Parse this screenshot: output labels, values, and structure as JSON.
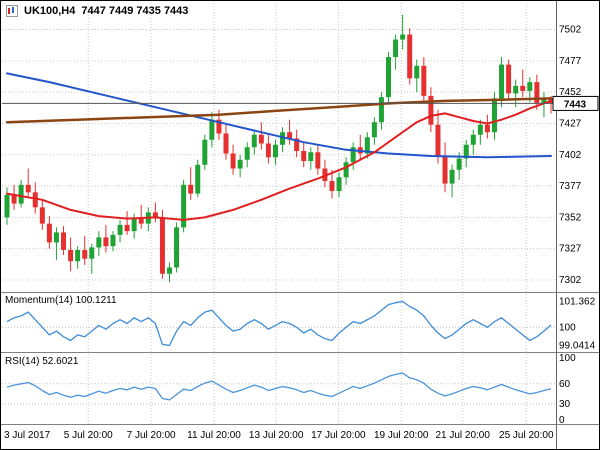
{
  "chart_data": {
    "type": "candlestick",
    "title": "UK100,H4 7447 7449 7435 7443",
    "symbol_tf": "UK100,H4",
    "ohlc_display": "7447 7449 7435 7443",
    "colors": {
      "up": "#1FA334",
      "down": "#E53030",
      "ma_slow": "#2255CC",
      "ma_medium": "#8B4513",
      "ma_fast": "#E02020",
      "momentum": "#3C8CD8",
      "rsi": "#4C94DC",
      "grid": "#C8C8C8",
      "grid_level": "#BFBFBF",
      "price_line": "#555555"
    },
    "main": {
      "ylim": [
        7294,
        7520
      ],
      "yticks": [
        7502,
        7477,
        7452,
        7427,
        7402,
        7377,
        7352,
        7327,
        7302
      ],
      "current_price": 7443,
      "candles": [
        [
          7352,
          7376,
          7346,
          7370
        ],
        [
          7370,
          7378,
          7358,
          7363
        ],
        [
          7363,
          7382,
          7360,
          7378
        ],
        [
          7378,
          7391,
          7368,
          7372
        ],
        [
          7372,
          7380,
          7355,
          7360
        ],
        [
          7360,
          7366,
          7342,
          7347
        ],
        [
          7347,
          7353,
          7327,
          7332
        ],
        [
          7332,
          7344,
          7318,
          7340
        ],
        [
          7340,
          7345,
          7322,
          7326
        ],
        [
          7326,
          7336,
          7309,
          7317
        ],
        [
          7317,
          7329,
          7311,
          7326
        ],
        [
          7326,
          7337,
          7314,
          7319
        ],
        [
          7319,
          7331,
          7307,
          7328
        ],
        [
          7328,
          7341,
          7321,
          7336
        ],
        [
          7336,
          7346,
          7324,
          7329
        ],
        [
          7329,
          7341,
          7325,
          7338
        ],
        [
          7338,
          7350,
          7332,
          7346
        ],
        [
          7346,
          7357,
          7338,
          7341
        ],
        [
          7341,
          7355,
          7335,
          7351
        ],
        [
          7351,
          7362,
          7343,
          7347
        ],
        [
          7347,
          7360,
          7341,
          7356
        ],
        [
          7356,
          7364,
          7348,
          7352
        ],
        [
          7352,
          7358,
          7303,
          7307
        ],
        [
          7307,
          7316,
          7300,
          7312
        ],
        [
          7312,
          7348,
          7308,
          7344
        ],
        [
          7344,
          7382,
          7340,
          7378
        ],
        [
          7378,
          7392,
          7366,
          7371
        ],
        [
          7371,
          7398,
          7368,
          7394
        ],
        [
          7394,
          7418,
          7390,
          7414
        ],
        [
          7414,
          7436,
          7408,
          7430
        ],
        [
          7430,
          7438,
          7414,
          7419
        ],
        [
          7419,
          7426,
          7398,
          7403
        ],
        [
          7403,
          7410,
          7386,
          7391
        ],
        [
          7391,
          7402,
          7384,
          7398
        ],
        [
          7398,
          7412,
          7392,
          7408
        ],
        [
          7408,
          7422,
          7402,
          7418
        ],
        [
          7418,
          7428,
          7406,
          7411
        ],
        [
          7411,
          7419,
          7395,
          7400
        ],
        [
          7400,
          7414,
          7394,
          7410
        ],
        [
          7410,
          7424,
          7404,
          7420
        ],
        [
          7420,
          7430,
          7410,
          7415
        ],
        [
          7415,
          7422,
          7400,
          7405
        ],
        [
          7405,
          7412,
          7392,
          7397
        ],
        [
          7397,
          7408,
          7390,
          7404
        ],
        [
          7404,
          7410,
          7386,
          7391
        ],
        [
          7391,
          7398,
          7376,
          7381
        ],
        [
          7381,
          7390,
          7367,
          7373
        ],
        [
          7373,
          7388,
          7368,
          7384
        ],
        [
          7384,
          7400,
          7378,
          7396
        ],
        [
          7396,
          7412,
          7390,
          7408
        ],
        [
          7408,
          7418,
          7398,
          7403
        ],
        [
          7403,
          7420,
          7399,
          7416
        ],
        [
          7416,
          7432,
          7410,
          7428
        ],
        [
          7428,
          7452,
          7422,
          7448
        ],
        [
          7448,
          7484,
          7442,
          7480
        ],
        [
          7480,
          7498,
          7470,
          7494
        ],
        [
          7494,
          7514,
          7486,
          7498
        ],
        [
          7498,
          7503,
          7458,
          7463
        ],
        [
          7463,
          7478,
          7452,
          7473
        ],
        [
          7473,
          7480,
          7444,
          7449
        ],
        [
          7449,
          7456,
          7420,
          7426
        ],
        [
          7426,
          7438,
          7395,
          7401
        ],
        [
          7401,
          7412,
          7372,
          7379
        ],
        [
          7379,
          7394,
          7368,
          7390
        ],
        [
          7390,
          7404,
          7382,
          7399
        ],
        [
          7399,
          7414,
          7392,
          7410
        ],
        [
          7410,
          7422,
          7402,
          7418
        ],
        [
          7418,
          7430,
          7410,
          7426
        ],
        [
          7426,
          7434,
          7415,
          7420
        ],
        [
          7420,
          7452,
          7414,
          7447
        ],
        [
          7447,
          7480,
          7440,
          7474
        ],
        [
          7474,
          7478,
          7446,
          7451
        ],
        [
          7451,
          7462,
          7440,
          7457
        ],
        [
          7457,
          7470,
          7448,
          7453
        ],
        [
          7453,
          7464,
          7444,
          7460
        ],
        [
          7460,
          7466,
          7438,
          7443
        ],
        [
          7443,
          7452,
          7432,
          7447
        ],
        [
          7447,
          7449,
          7435,
          7443
        ]
      ],
      "ma_slow": {
        "points": [
          [
            0,
            7467
          ],
          [
            6,
            7460
          ],
          [
            12,
            7452
          ],
          [
            18,
            7444
          ],
          [
            24,
            7436
          ],
          [
            30,
            7428
          ],
          [
            36,
            7420
          ],
          [
            42,
            7412
          ],
          [
            48,
            7406
          ],
          [
            54,
            7403
          ],
          [
            60,
            7401
          ],
          [
            68,
            7400
          ],
          [
            77,
            7401
          ]
        ]
      },
      "ma_medium": {
        "points": [
          [
            0,
            7428
          ],
          [
            10,
            7430
          ],
          [
            20,
            7432
          ],
          [
            30,
            7434
          ],
          [
            38,
            7437
          ],
          [
            46,
            7440
          ],
          [
            54,
            7443
          ],
          [
            62,
            7445
          ],
          [
            70,
            7446
          ],
          [
            77,
            7447
          ]
        ]
      },
      "ma_fast": {
        "points": [
          [
            0,
            7371
          ],
          [
            5,
            7366
          ],
          [
            9,
            7358
          ],
          [
            13,
            7353
          ],
          [
            17,
            7351
          ],
          [
            21,
            7352
          ],
          [
            25,
            7350
          ],
          [
            28,
            7352
          ],
          [
            32,
            7358
          ],
          [
            36,
            7366
          ],
          [
            40,
            7375
          ],
          [
            44,
            7383
          ],
          [
            48,
            7392
          ],
          [
            52,
            7404
          ],
          [
            54,
            7412
          ],
          [
            56,
            7420
          ],
          [
            58,
            7428
          ],
          [
            60,
            7433
          ],
          [
            62,
            7435
          ],
          [
            64,
            7432
          ],
          [
            66,
            7429
          ],
          [
            68,
            7427
          ],
          [
            70,
            7430
          ],
          [
            72,
            7434
          ],
          [
            74,
            7439
          ],
          [
            76,
            7443
          ],
          [
            77,
            7445
          ]
        ]
      }
    },
    "momentum": {
      "label": "Momentum(14) 100.1211",
      "value": 100.1211,
      "ylim": [
        98.8,
        101.6
      ],
      "yticks": [
        101.362,
        100,
        99.0414
      ],
      "levels": [
        100
      ],
      "values": [
        100.3,
        100.5,
        100.6,
        100.8,
        100.4,
        100.0,
        99.6,
        99.8,
        99.5,
        99.3,
        99.6,
        99.5,
        99.8,
        100.1,
        99.9,
        100.2,
        100.4,
        100.2,
        100.5,
        100.3,
        100.5,
        100.2,
        99.1,
        99.04,
        99.8,
        100.3,
        100.1,
        100.5,
        100.8,
        100.9,
        100.5,
        100.1,
        99.8,
        99.9,
        100.2,
        100.4,
        100.2,
        99.9,
        100.1,
        100.3,
        100.2,
        100.0,
        99.7,
        99.9,
        99.6,
        99.4,
        99.3,
        99.7,
        100.0,
        100.3,
        100.2,
        100.4,
        100.6,
        100.9,
        101.2,
        101.3,
        101.36,
        101.1,
        100.9,
        100.6,
        100.1,
        99.7,
        99.4,
        99.6,
        99.9,
        100.2,
        100.4,
        100.2,
        100.0,
        100.3,
        100.5,
        100.2,
        99.9,
        99.6,
        99.3,
        99.5,
        99.8,
        100.12
      ]
    },
    "rsi": {
      "label": "RSI(14) 52.6021",
      "value": 52.6021,
      "ylim": [
        0,
        100
      ],
      "yticks": [
        100,
        60,
        30,
        0
      ],
      "levels": [
        60,
        30
      ],
      "values": [
        55,
        58,
        60,
        62,
        57,
        50,
        44,
        47,
        43,
        40,
        43,
        41,
        45,
        49,
        46,
        50,
        53,
        51,
        55,
        52,
        55,
        53,
        38,
        36,
        44,
        52,
        50,
        56,
        61,
        64,
        58,
        52,
        47,
        50,
        54,
        58,
        55,
        50,
        53,
        56,
        54,
        51,
        47,
        50,
        46,
        43,
        41,
        46,
        51,
        56,
        53,
        57,
        61,
        66,
        71,
        74,
        76,
        69,
        66,
        61,
        52,
        46,
        42,
        45,
        49,
        53,
        56,
        54,
        51,
        55,
        59,
        55,
        51,
        48,
        45,
        47,
        50,
        52.6
      ]
    },
    "xlabels": [
      {
        "label": "3 Jul 2017",
        "i": 0
      },
      {
        "label": "5 Jul 20:00",
        "i": 11.5
      },
      {
        "label": "7 Jul 20:00",
        "i": 20.4
      },
      {
        "label": "11 Jul 20:00",
        "i": 29.3
      },
      {
        "label": "13 Jul 20:00",
        "i": 38.1
      },
      {
        "label": "17 Jul 20:00",
        "i": 46.9
      },
      {
        "label": "19 Jul 20:00",
        "i": 55.8
      },
      {
        "label": "21 Jul 20:00",
        "i": 64.5
      },
      {
        "label": "25 Jul 20:00",
        "i": 73.5
      }
    ]
  }
}
